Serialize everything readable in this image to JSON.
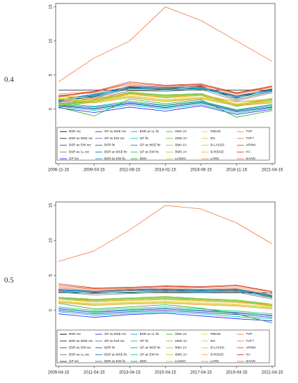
{
  "chart_data": [
    {
      "type": "line",
      "label": "0.4",
      "x": [
        "2006-11-15",
        "2009-03-15",
        "2011-08-15",
        "2014-01-15",
        "2016-06-15",
        "2018-11-15",
        "2021-04-15"
      ],
      "ylim": [
        -8,
        15.5
      ],
      "yticks": [
        0,
        5,
        10,
        15
      ],
      "series": [
        {
          "name": "BSR rec",
          "color": "#000000",
          "values": [
            1.2,
            1.8,
            3.2,
            3,
            3.4,
            1.6,
            3
          ]
        },
        {
          "name": "BSR av MSE rec",
          "color": "#333333",
          "values": [
            2.8,
            2.8,
            2.8,
            2.8,
            2.8,
            2.8,
            2.8
          ]
        },
        {
          "name": "BSR av EW rec",
          "color": "#555555",
          "values": [
            1,
            1.6,
            3,
            2.9,
            3.2,
            1.4,
            2.6
          ]
        },
        {
          "name": "BSR av LL rec",
          "color": "#777777",
          "values": [
            0.8,
            1.4,
            2.7,
            2.6,
            2.9,
            1.2,
            2.4
          ]
        },
        {
          "name": "GP rec",
          "color": "#1a1aff",
          "values": [
            0.2,
            -0.5,
            0.3,
            -0.3,
            0.5,
            -0.8,
            0
          ]
        },
        {
          "name": "GP av MSE rec",
          "color": "#3333cc",
          "values": [
            0.5,
            0,
            0.8,
            0.2,
            0.9,
            -0.4,
            0.3
          ]
        },
        {
          "name": "GP av EW rec",
          "color": "#4466ee",
          "values": [
            0.7,
            0.3,
            1,
            0.5,
            1.1,
            -0.2,
            0.6
          ]
        },
        {
          "name": "BSR fix",
          "color": "#2255aa",
          "values": [
            1.1,
            2,
            3.4,
            3.2,
            3.3,
            1.8,
            2.9
          ]
        },
        {
          "name": "BSR av MSE fix",
          "color": "#0077bb",
          "values": [
            1.4,
            2.2,
            3.1,
            3.1,
            3,
            2,
            2.7
          ]
        },
        {
          "name": "BSR av EW fix",
          "color": "#0099cc",
          "values": [
            1.3,
            2.1,
            3.3,
            3,
            3.1,
            1.9,
            2.8
          ]
        },
        {
          "name": "BSR av LL fix",
          "color": "#00aacc",
          "values": [
            1.2,
            1.9,
            3.1,
            2.8,
            3,
            1.7,
            2.6
          ]
        },
        {
          "name": "GP fix",
          "color": "#00bbbb",
          "values": [
            0.4,
            -0.2,
            0.6,
            0,
            0.7,
            -0.6,
            0.2
          ]
        },
        {
          "name": "GP av MSE fix",
          "color": "#00aa88",
          "values": [
            0.6,
            0.1,
            0.9,
            0.3,
            1,
            -0.3,
            0.4
          ]
        },
        {
          "name": "GP av EW fix",
          "color": "#00cc66",
          "values": [
            0.9,
            0.4,
            1.2,
            0.6,
            1.2,
            -0.1,
            0.7
          ]
        },
        {
          "name": "DMA",
          "color": "#22aa22",
          "values": [
            0.3,
            -1,
            1.5,
            0.8,
            1.4,
            -1.2,
            -0.2
          ]
        },
        {
          "name": "DMA 1V",
          "color": "#33bb33",
          "values": [
            0.6,
            1.2,
            2.4,
            2,
            2.2,
            0.6,
            1.5
          ]
        },
        {
          "name": "DMS 1V",
          "color": "#66cc33",
          "values": [
            0.5,
            1,
            2.2,
            1.8,
            2,
            0.4,
            1.3
          ]
        },
        {
          "name": "BMA 1V",
          "color": "#99cc33",
          "values": [
            0.7,
            1.3,
            2.5,
            2.1,
            2.3,
            0.7,
            1.6
          ]
        },
        {
          "name": "BMS 1V",
          "color": "#aacc22",
          "values": [
            0.6,
            1.1,
            2.3,
            1.9,
            2.1,
            0.5,
            1.4
          ]
        },
        {
          "name": "LASSO",
          "color": "#cccc33",
          "values": [
            1.5,
            1,
            1.8,
            1.2,
            1.6,
            0.6,
            1
          ]
        },
        {
          "name": "RIDGE",
          "color": "#dddd44",
          "values": [
            1.7,
            1.2,
            2,
            1.4,
            1.8,
            0.8,
            1.2
          ]
        },
        {
          "name": "EN",
          "color": "#eecc33",
          "values": [
            1.6,
            1.1,
            1.9,
            1.3,
            1.7,
            0.7,
            1.1
          ]
        },
        {
          "name": "B-LASSO",
          "color": "#eebb33",
          "values": [
            1.9,
            1.5,
            2.2,
            1.6,
            2,
            1,
            1.4
          ]
        },
        {
          "name": "B-RIDGE",
          "color": "#eeaa44",
          "values": [
            2,
            1.6,
            2.3,
            1.7,
            2.1,
            1.1,
            1.5
          ]
        },
        {
          "name": "LARS",
          "color": "#ee9944",
          "values": [
            1.4,
            0.9,
            1.7,
            1.1,
            1.5,
            0.5,
            0.9
          ]
        },
        {
          "name": "TVP",
          "color": "#ee8844",
          "values": [
            2.2,
            2.6,
            3.6,
            3.3,
            3.5,
            2.2,
            3.2
          ]
        },
        {
          "name": "TVP f",
          "color": "#ee7744",
          "values": [
            2,
            2.4,
            3.3,
            3.1,
            3.3,
            2,
            3
          ]
        },
        {
          "name": "ARIMA",
          "color": "#e05533",
          "values": [
            1.8,
            2.5,
            3.8,
            3.4,
            3.6,
            2.3,
            3.3
          ]
        },
        {
          "name": "HA",
          "color": "#d03020",
          "values": [
            1.9,
            2.6,
            4,
            3.5,
            3.7,
            2.4,
            3.4
          ]
        },
        {
          "name": "NAIVE",
          "color": "#f4763a",
          "values": [
            4,
            7.5,
            10,
            15,
            13,
            10,
            7
          ]
        }
      ]
    },
    {
      "type": "line",
      "label": "0.5",
      "x": [
        "2009-04-15",
        "2011-04-15",
        "2013-04-15",
        "2015-04-15",
        "2017-04-15",
        "2019-04-15",
        "2021-04-15"
      ],
      "ylim": [
        -8,
        15.5
      ],
      "yticks": [
        0,
        5,
        10,
        15
      ],
      "series": [
        {
          "name": "BSR rec",
          "color": "#000000",
          "values": [
            3,
            2.6,
            2.8,
            3,
            2.9,
            3,
            2
          ]
        },
        {
          "name": "BSR av MSE rec",
          "color": "#333333",
          "values": [
            2.5,
            2.5,
            2.5,
            2.5,
            2.5,
            2.5,
            2.5
          ]
        },
        {
          "name": "BSR av EW rec",
          "color": "#555555",
          "values": [
            2.8,
            2.4,
            2.6,
            2.8,
            2.7,
            2.8,
            1.8
          ]
        },
        {
          "name": "BSR av LL rec",
          "color": "#777777",
          "values": [
            2.6,
            2.2,
            2.4,
            2.6,
            2.5,
            2.6,
            1.6
          ]
        },
        {
          "name": "GP rec",
          "color": "#1a1aff",
          "values": [
            -0.5,
            -1,
            -0.6,
            -0.4,
            -0.8,
            -1.2,
            -1.5
          ]
        },
        {
          "name": "GP av MSE rec",
          "color": "#3333cc",
          "values": [
            0,
            -0.5,
            -0.2,
            0,
            -0.3,
            -0.6,
            -1
          ]
        },
        {
          "name": "GP av EW rec",
          "color": "#4466ee",
          "values": [
            0.3,
            -0.2,
            0.1,
            0.3,
            0,
            -0.3,
            -0.7
          ]
        },
        {
          "name": "BSR fix",
          "color": "#2255aa",
          "values": [
            3.2,
            2.8,
            3,
            3.1,
            3,
            3.1,
            2.2
          ]
        },
        {
          "name": "BSR av MSE fix",
          "color": "#0077bb",
          "values": [
            2.9,
            2.6,
            2.8,
            2.9,
            2.8,
            2.9,
            2
          ]
        },
        {
          "name": "BSR av EW fix",
          "color": "#0099cc",
          "values": [
            3,
            2.7,
            2.9,
            3,
            2.9,
            3,
            2.1
          ]
        },
        {
          "name": "BSR av LL fix",
          "color": "#00aacc",
          "values": [
            2.7,
            2.4,
            2.6,
            2.7,
            2.6,
            2.7,
            1.9
          ]
        },
        {
          "name": "GP fix",
          "color": "#00bbbb",
          "values": [
            -0.2,
            -0.7,
            -0.4,
            -0.2,
            -0.5,
            -0.9,
            -1.2
          ]
        },
        {
          "name": "GP av MSE fix",
          "color": "#00aa88",
          "values": [
            0.2,
            -0.3,
            0,
            0.2,
            -0.1,
            -0.4,
            -0.8
          ]
        },
        {
          "name": "GP av EW fix",
          "color": "#00cc66",
          "values": [
            0.5,
            0,
            0.3,
            0.5,
            0.2,
            -0.1,
            -0.5
          ]
        },
        {
          "name": "DMA",
          "color": "#22aa22",
          "values": [
            1,
            0.2,
            0.5,
            0.8,
            0.3,
            -0.5,
            -1.8
          ]
        },
        {
          "name": "DMA 1V",
          "color": "#33bb33",
          "values": [
            1.8,
            1.5,
            1.7,
            1.9,
            1.6,
            1.4,
            0.8
          ]
        },
        {
          "name": "DMS 1V",
          "color": "#66cc33",
          "values": [
            1.6,
            1.3,
            1.5,
            1.7,
            1.4,
            1.2,
            0.6
          ]
        },
        {
          "name": "BMA 1V",
          "color": "#99cc33",
          "values": [
            1.9,
            1.6,
            1.8,
            2,
            1.7,
            1.5,
            0.9
          ]
        },
        {
          "name": "BMS 1V",
          "color": "#aacc22",
          "values": [
            1.7,
            1.4,
            1.6,
            1.8,
            1.5,
            1.3,
            0.7
          ]
        },
        {
          "name": "LASSO",
          "color": "#cccc33",
          "values": [
            1.2,
            0.8,
            1,
            1.1,
            0.9,
            0.7,
            0.3
          ]
        },
        {
          "name": "RIDGE",
          "color": "#dddd44",
          "values": [
            1.4,
            1,
            1.2,
            1.3,
            1.1,
            0.9,
            0.5
          ]
        },
        {
          "name": "EN",
          "color": "#eecc33",
          "values": [
            1.3,
            0.9,
            1.1,
            1.2,
            1,
            0.8,
            0.4
          ]
        },
        {
          "name": "B-LASSO",
          "color": "#eebb33",
          "values": [
            1.6,
            1.2,
            1.4,
            1.5,
            1.3,
            1.1,
            0.7
          ]
        },
        {
          "name": "B-RIDGE",
          "color": "#eeaa44",
          "values": [
            1.7,
            1.3,
            1.5,
            1.6,
            1.4,
            1.2,
            0.8
          ]
        },
        {
          "name": "LARS",
          "color": "#ee9944",
          "values": [
            1.1,
            0.7,
            0.9,
            1,
            0.8,
            0.6,
            0.2
          ]
        },
        {
          "name": "TVP",
          "color": "#ee8844",
          "values": [
            3.4,
            3,
            3.1,
            3.3,
            3.2,
            3.3,
            2.4
          ]
        },
        {
          "name": "TVP f",
          "color": "#ee7744",
          "values": [
            3.2,
            2.8,
            2.9,
            3.1,
            3,
            3.1,
            2.2
          ]
        },
        {
          "name": "ARIMA",
          "color": "#e05533",
          "values": [
            3.6,
            3.1,
            3.2,
            3.4,
            3.3,
            3.5,
            2.6
          ]
        },
        {
          "name": "HA",
          "color": "#d03020",
          "values": [
            3.8,
            3.2,
            3.3,
            3.5,
            3.4,
            3.6,
            2.7
          ]
        },
        {
          "name": "NAIVE",
          "color": "#f4763a",
          "values": [
            7,
            8.5,
            11.5,
            15,
            14.5,
            12.5,
            9.5
          ]
        }
      ]
    }
  ]
}
